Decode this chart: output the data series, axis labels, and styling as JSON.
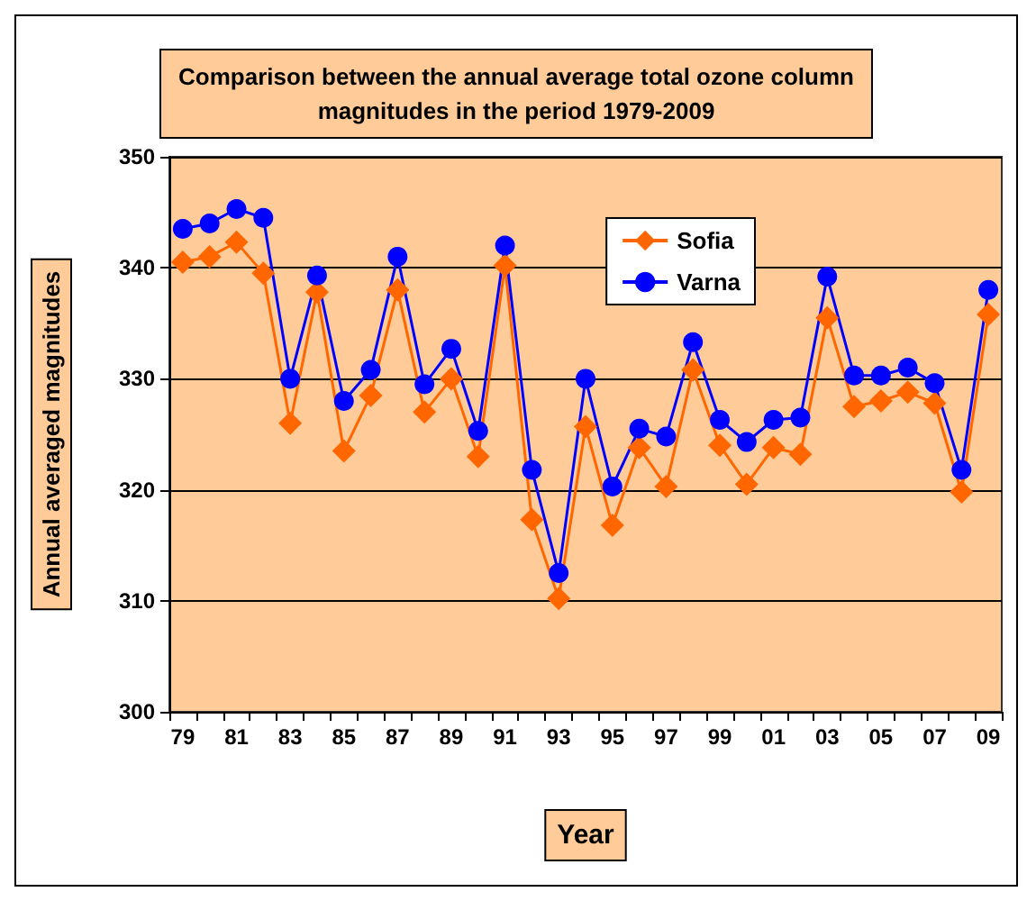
{
  "chart_data": {
    "type": "line",
    "title": "Comparison between the annual average total ozone column\nmagnitudes in the period 1979-2009",
    "xlabel": "Year",
    "ylabel": "Annual averaged magnitudes",
    "categories": [
      "79",
      null,
      "81",
      null,
      "83",
      null,
      "85",
      null,
      "87",
      null,
      "89",
      null,
      "91",
      null,
      "93",
      null,
      "95",
      null,
      "97",
      null,
      "99",
      null,
      "01",
      null,
      "03",
      null,
      "05",
      null,
      "07",
      null,
      "09"
    ],
    "series": [
      {
        "name": "Sofia",
        "color": "#ff6600",
        "marker": "diamond",
        "values": [
          340.5,
          341,
          342.3,
          339.5,
          326,
          337.8,
          323.5,
          328.5,
          338,
          327,
          330,
          323,
          340.2,
          317.3,
          310.2,
          325.7,
          316.8,
          323.8,
          320.3,
          330.8,
          324,
          320.5,
          323.8,
          323.2,
          335.5,
          327.5,
          328,
          328.8,
          327.8,
          319.8,
          335.8
        ]
      },
      {
        "name": "Varna",
        "color": "#0000ff",
        "marker": "circle",
        "values": [
          343.5,
          344,
          345.3,
          344.5,
          330,
          339.3,
          328,
          330.8,
          341,
          329.5,
          332.7,
          325.3,
          342,
          321.8,
          312.5,
          330,
          320.3,
          325.5,
          324.8,
          333.3,
          326.3,
          324.3,
          326.3,
          326.5,
          339.2,
          330.3,
          330.3,
          331,
          329.6,
          321.8,
          338
        ]
      }
    ],
    "ylim": [
      300,
      350
    ],
    "yticks": [
      300,
      310,
      320,
      330,
      340,
      350
    ],
    "grid": "y",
    "legend": "top right"
  }
}
